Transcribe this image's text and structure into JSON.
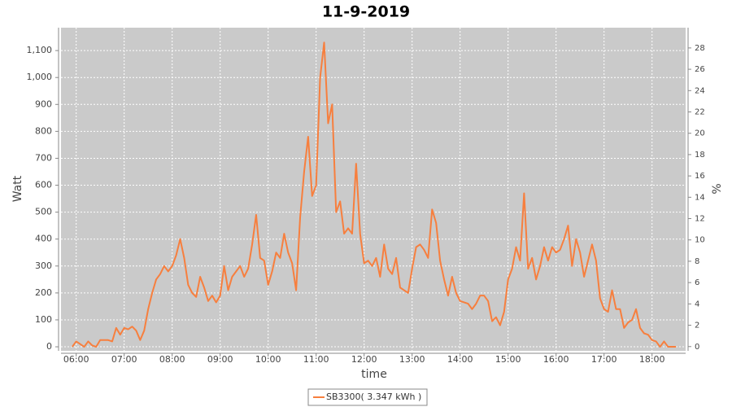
{
  "chart_data": {
    "type": "line",
    "title": "11-9-2019",
    "x_label": "time",
    "y_label": "Watt",
    "y2_label": "%",
    "x": [
      "05:55",
      "06:00",
      "06:05",
      "06:10",
      "06:15",
      "06:20",
      "06:25",
      "06:30",
      "06:35",
      "06:40",
      "06:45",
      "06:50",
      "06:55",
      "07:00",
      "07:05",
      "07:10",
      "07:15",
      "07:20",
      "07:25",
      "07:30",
      "07:35",
      "07:40",
      "07:45",
      "07:50",
      "07:55",
      "08:00",
      "08:05",
      "08:10",
      "08:15",
      "08:20",
      "08:25",
      "08:30",
      "08:35",
      "08:40",
      "08:45",
      "08:50",
      "08:55",
      "09:00",
      "09:05",
      "09:10",
      "09:15",
      "09:20",
      "09:25",
      "09:30",
      "09:35",
      "09:40",
      "09:45",
      "09:50",
      "09:55",
      "10:00",
      "10:05",
      "10:10",
      "10:15",
      "10:20",
      "10:25",
      "10:30",
      "10:35",
      "10:40",
      "10:45",
      "10:50",
      "10:55",
      "11:00",
      "11:05",
      "11:10",
      "11:15",
      "11:20",
      "11:25",
      "11:30",
      "11:35",
      "11:40",
      "11:45",
      "11:50",
      "11:55",
      "12:00",
      "12:05",
      "12:10",
      "12:15",
      "12:20",
      "12:25",
      "12:30",
      "12:35",
      "12:40",
      "12:45",
      "12:50",
      "12:55",
      "13:00",
      "13:05",
      "13:10",
      "13:15",
      "13:20",
      "13:25",
      "13:30",
      "13:35",
      "13:40",
      "13:45",
      "13:50",
      "13:55",
      "14:00",
      "14:05",
      "14:10",
      "14:15",
      "14:20",
      "14:25",
      "14:30",
      "14:35",
      "14:40",
      "14:45",
      "14:50",
      "14:55",
      "15:00",
      "15:05",
      "15:10",
      "15:15",
      "15:20",
      "15:25",
      "15:30",
      "15:35",
      "15:40",
      "15:45",
      "15:50",
      "15:55",
      "16:00",
      "16:05",
      "16:10",
      "16:15",
      "16:20",
      "16:25",
      "16:30",
      "16:35",
      "16:40",
      "16:45",
      "16:50",
      "16:55",
      "17:00",
      "17:05",
      "17:10",
      "17:15",
      "17:20",
      "17:25",
      "17:30",
      "17:35",
      "17:40",
      "17:45",
      "17:50",
      "17:55",
      "18:00",
      "18:05",
      "18:10",
      "18:15",
      "18:20",
      "18:25",
      "18:30"
    ],
    "series": [
      {
        "name": "SB3300( 3.347 kWh )",
        "color": "#f77f3e",
        "values": [
          0,
          20,
          10,
          0,
          20,
          5,
          0,
          25,
          25,
          25,
          20,
          70,
          45,
          70,
          65,
          75,
          60,
          25,
          60,
          140,
          200,
          250,
          270,
          300,
          280,
          300,
          340,
          400,
          330,
          230,
          200,
          185,
          260,
          220,
          170,
          190,
          165,
          190,
          300,
          210,
          260,
          280,
          300,
          260,
          290,
          380,
          490,
          330,
          320,
          230,
          280,
          350,
          330,
          420,
          350,
          310,
          210,
          480,
          650,
          780,
          560,
          600,
          1000,
          1130,
          830,
          900,
          500,
          540,
          420,
          440,
          420,
          680,
          420,
          310,
          320,
          300,
          330,
          260,
          380,
          290,
          270,
          330,
          220,
          210,
          200,
          290,
          370,
          380,
          360,
          330,
          510,
          460,
          320,
          250,
          190,
          260,
          200,
          170,
          165,
          160,
          140,
          160,
          190,
          190,
          170,
          95,
          110,
          80,
          130,
          250,
          290,
          370,
          320,
          570,
          290,
          330,
          250,
          300,
          370,
          320,
          370,
          350,
          360,
          400,
          450,
          300,
          400,
          350,
          260,
          320,
          380,
          320,
          180,
          140,
          130,
          210,
          140,
          140,
          70,
          90,
          100,
          140,
          70,
          50,
          45,
          25,
          20,
          0,
          20,
          0,
          0,
          0
        ]
      }
    ],
    "xlim": [
      "05:41",
      "18:42"
    ],
    "xticks": [
      "06:00",
      "07:00",
      "08:00",
      "09:00",
      "10:00",
      "11:00",
      "12:00",
      "13:00",
      "14:00",
      "15:00",
      "16:00",
      "17:00",
      "18:00"
    ],
    "ylim": [
      -15,
      1185
    ],
    "yticks": [
      0,
      100,
      200,
      300,
      400,
      500,
      600,
      700,
      800,
      900,
      {
        "value": 1000,
        "label": "1,000"
      },
      {
        "value": 1100,
        "label": "1,100"
      }
    ],
    "y2lim": [
      -0.4,
      29.9
    ],
    "y2ticks": [
      0,
      2,
      4,
      6,
      8,
      10,
      12,
      14,
      16,
      18,
      20,
      22,
      24,
      26,
      28
    ],
    "grid": true,
    "legend": "bottom"
  }
}
